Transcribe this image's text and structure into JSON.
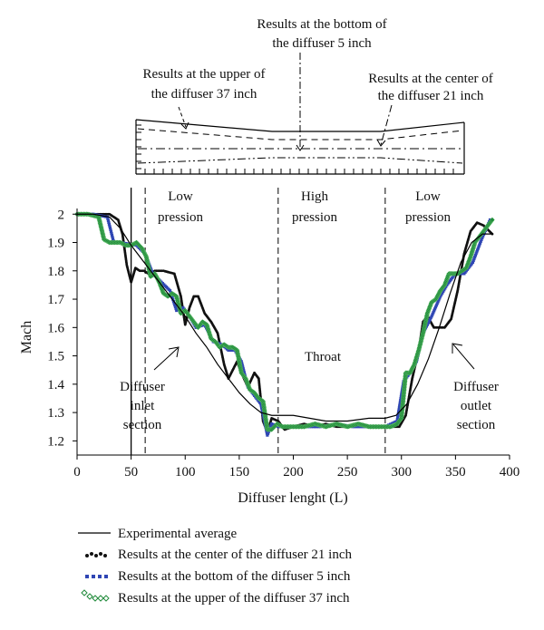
{
  "colors": {
    "experimental": "#000000",
    "center": "#111111",
    "bottom": "#2f46b4",
    "upper": "#1f8a3a"
  },
  "schematic": {
    "label_bottom_line1": "Results at the bottom of",
    "label_bottom_line2": "the diffuser 5 inch",
    "label_upper_line1": "Results at the upper of",
    "label_upper_line2": "the diffuser 37 inch",
    "label_center_line1": "Results at the center of",
    "label_center_line2": "the diffuser 21 inch"
  },
  "annotations": {
    "low1_line1": "Low",
    "low1_line2": "pression",
    "high_line1": "High",
    "high_line2": "pression",
    "low2_line1": "Low",
    "low2_line2": "pression",
    "throat": "Throat",
    "inlet_line1": "Diffuser",
    "inlet_line2": "inlet",
    "inlet_line3": "section",
    "outlet_line1": "Diffuser",
    "outlet_line2": "outlet",
    "outlet_line3": "section"
  },
  "chart_data": {
    "type": "line",
    "xlabel": "Diffuser lenght (L)",
    "ylabel": "Mach",
    "xlim": [
      0,
      400
    ],
    "ylim": [
      1.15,
      2.02
    ],
    "xticks": [
      "0",
      "50",
      "100",
      "150",
      "200",
      "250",
      "300",
      "350",
      "400"
    ],
    "yticks": [
      "1.2",
      "1.3",
      "1.4",
      "1.5",
      "1.6",
      "1.7",
      "1.8",
      "1.9",
      "2"
    ],
    "legend_position": "bottom",
    "reference_lines": {
      "solid_x": 50,
      "dashed_x": [
        63,
        186,
        285
      ]
    },
    "series": [
      {
        "name": "Experimental average",
        "style": "line",
        "x": [
          0,
          15,
          30,
          40,
          50,
          60,
          70,
          80,
          90,
          100,
          110,
          120,
          130,
          140,
          150,
          160,
          170,
          180,
          190,
          200,
          215,
          230,
          250,
          270,
          285,
          295,
          305,
          315,
          325,
          335,
          345,
          355,
          365,
          375,
          385
        ],
        "y": [
          2.0,
          2.0,
          1.99,
          1.95,
          1.89,
          1.84,
          1.79,
          1.74,
          1.69,
          1.64,
          1.58,
          1.53,
          1.47,
          1.42,
          1.37,
          1.33,
          1.3,
          1.29,
          1.29,
          1.29,
          1.28,
          1.27,
          1.27,
          1.28,
          1.28,
          1.29,
          1.33,
          1.4,
          1.49,
          1.6,
          1.72,
          1.83,
          1.9,
          1.93,
          1.93
        ]
      },
      {
        "name": "Results at the center of the diffuser 21 inch",
        "style": "dots",
        "x": [
          0,
          10,
          20,
          30,
          38,
          42,
          46,
          50,
          54,
          58,
          62,
          66,
          72,
          80,
          90,
          96,
          100,
          104,
          108,
          112,
          118,
          124,
          130,
          136,
          140,
          144,
          148,
          152,
          158,
          164,
          168,
          172,
          176,
          180,
          186,
          192,
          200,
          210,
          220,
          230,
          240,
          250,
          260,
          270,
          280,
          290,
          298,
          304,
          310,
          316,
          320,
          324,
          330,
          340,
          346,
          352,
          358,
          364,
          370,
          376,
          384
        ],
        "y": [
          2.0,
          2.0,
          2.0,
          2.0,
          1.98,
          1.93,
          1.82,
          1.76,
          1.81,
          1.8,
          1.8,
          1.79,
          1.8,
          1.8,
          1.79,
          1.71,
          1.61,
          1.67,
          1.71,
          1.71,
          1.65,
          1.62,
          1.58,
          1.47,
          1.42,
          1.45,
          1.48,
          1.44,
          1.39,
          1.44,
          1.42,
          1.27,
          1.23,
          1.28,
          1.27,
          1.24,
          1.25,
          1.26,
          1.25,
          1.26,
          1.25,
          1.25,
          1.26,
          1.25,
          1.25,
          1.25,
          1.25,
          1.29,
          1.42,
          1.52,
          1.62,
          1.64,
          1.6,
          1.6,
          1.63,
          1.73,
          1.86,
          1.94,
          1.97,
          1.96,
          1.93
        ]
      },
      {
        "name": "Results at the bottom of the diffuser 5 inch",
        "style": "squares",
        "x": [
          0,
          15,
          28,
          34,
          40,
          55,
          63,
          70,
          78,
          86,
          92,
          98,
          104,
          110,
          118,
          126,
          134,
          140,
          146,
          152,
          158,
          164,
          170,
          176,
          180,
          186,
          195,
          210,
          225,
          240,
          255,
          270,
          285,
          296,
          302,
          308,
          314,
          320,
          328,
          336,
          342,
          350,
          358,
          366,
          374,
          382
        ],
        "y": [
          2.0,
          2.0,
          1.99,
          1.9,
          1.9,
          1.89,
          1.86,
          1.79,
          1.76,
          1.73,
          1.66,
          1.67,
          1.64,
          1.6,
          1.61,
          1.55,
          1.54,
          1.52,
          1.52,
          1.48,
          1.39,
          1.36,
          1.33,
          1.22,
          1.26,
          1.25,
          1.25,
          1.25,
          1.25,
          1.26,
          1.25,
          1.25,
          1.25,
          1.27,
          1.41,
          1.44,
          1.48,
          1.58,
          1.64,
          1.71,
          1.75,
          1.79,
          1.79,
          1.83,
          1.91,
          1.98
        ]
      },
      {
        "name": "Results at the upper of the diffuser 37 inch",
        "style": "diamonds",
        "x": [
          0,
          10,
          20,
          25,
          30,
          35,
          40,
          45,
          50,
          55,
          60,
          64,
          68,
          72,
          76,
          80,
          84,
          88,
          92,
          96,
          100,
          104,
          108,
          112,
          116,
          120,
          124,
          128,
          132,
          136,
          140,
          144,
          148,
          152,
          156,
          160,
          164,
          168,
          172,
          176,
          180,
          185,
          190,
          200,
          210,
          220,
          230,
          240,
          250,
          260,
          270,
          280,
          290,
          296,
          300,
          304,
          308,
          312,
          316,
          320,
          324,
          328,
          332,
          336,
          340,
          344,
          348,
          352,
          356,
          360,
          364,
          368,
          372,
          376,
          380,
          384
        ],
        "y": [
          2.0,
          2.0,
          1.99,
          1.91,
          1.9,
          1.9,
          1.9,
          1.89,
          1.89,
          1.9,
          1.88,
          1.85,
          1.78,
          1.79,
          1.76,
          1.72,
          1.71,
          1.72,
          1.71,
          1.65,
          1.66,
          1.64,
          1.62,
          1.6,
          1.62,
          1.61,
          1.56,
          1.55,
          1.53,
          1.54,
          1.53,
          1.53,
          1.52,
          1.44,
          1.42,
          1.38,
          1.37,
          1.35,
          1.34,
          1.24,
          1.24,
          1.26,
          1.25,
          1.25,
          1.25,
          1.26,
          1.25,
          1.26,
          1.25,
          1.26,
          1.25,
          1.25,
          1.25,
          1.26,
          1.28,
          1.44,
          1.44,
          1.47,
          1.52,
          1.58,
          1.65,
          1.69,
          1.7,
          1.73,
          1.75,
          1.79,
          1.79,
          1.79,
          1.8,
          1.81,
          1.85,
          1.9,
          1.92,
          1.94,
          1.96,
          1.98
        ]
      }
    ]
  }
}
